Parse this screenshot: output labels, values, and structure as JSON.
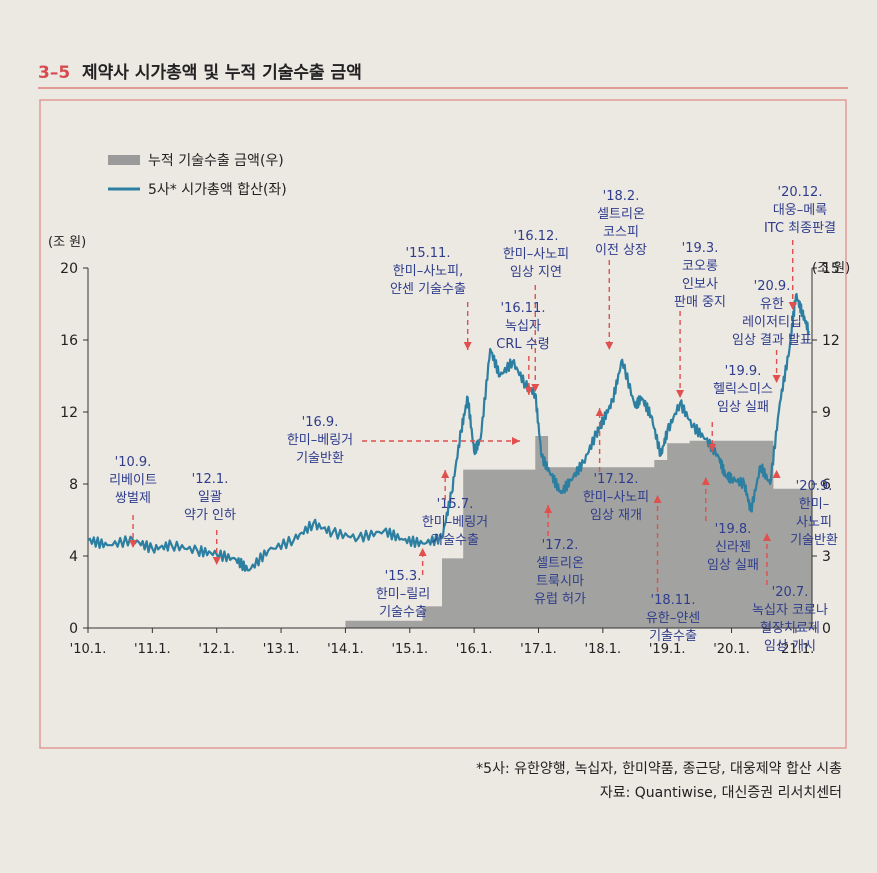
{
  "figure": {
    "number": "3–5",
    "title": "제약사 시가총액 및 누적 기술수출 금액",
    "footnote": "*5사: 유한양행, 녹십자, 한미약품, 종근당, 대웅제약 합산 시총",
    "source": "자료: Quantiwise, 대신증권 리서치센터"
  },
  "colors": {
    "number": "#d94a50",
    "frame": "#e29a96",
    "line": "#2c7fa0",
    "bar": "#9a9a9a",
    "annotation": "#2f3d8c",
    "arrow": "#e0504e",
    "text": "#222222"
  },
  "chart_data": {
    "type": "line+area",
    "legend": [
      {
        "label": "누적 기술수출 금액(우)",
        "series": "cumulative_exports"
      },
      {
        "label": "5사* 시가총액 합산(좌)",
        "series": "market_cap"
      }
    ],
    "y_left": {
      "unit_label": "(조 원)",
      "min": 0,
      "max": 20,
      "ticks": [
        0,
        4,
        8,
        12,
        16,
        20
      ]
    },
    "y_right": {
      "unit_label": "(조 원)",
      "min": 0,
      "max": 15,
      "ticks": [
        0,
        3,
        6,
        9,
        12,
        15
      ]
    },
    "x": {
      "min": 2010,
      "max": 2021.25,
      "ticks": [
        {
          "value": 2010,
          "label": "'10.1."
        },
        {
          "value": 2011,
          "label": "'11.1."
        },
        {
          "value": 2012,
          "label": "'12.1."
        },
        {
          "value": 2013,
          "label": "'13.1."
        },
        {
          "value": 2014,
          "label": "'14.1."
        },
        {
          "value": 2015,
          "label": "'15.1."
        },
        {
          "value": 2016,
          "label": "'16.1."
        },
        {
          "value": 2017,
          "label": "'17.1."
        },
        {
          "value": 2018,
          "label": "'18.1."
        },
        {
          "value": 2019,
          "label": "'19.1."
        },
        {
          "value": 2020,
          "label": "'20.1."
        },
        {
          "value": 2021,
          "label": "'21.1."
        }
      ]
    },
    "series": [
      {
        "id": "market_cap",
        "axis": "left",
        "points": [
          [
            2010.0,
            4.9
          ],
          [
            2010.3,
            4.6
          ],
          [
            2010.7,
            4.9
          ],
          [
            2011.0,
            4.4
          ],
          [
            2011.3,
            4.6
          ],
          [
            2011.7,
            4.3
          ],
          [
            2012.0,
            4.1
          ],
          [
            2012.3,
            3.8
          ],
          [
            2012.5,
            3.2
          ],
          [
            2012.8,
            4.3
          ],
          [
            2013.2,
            4.9
          ],
          [
            2013.5,
            5.8
          ],
          [
            2013.8,
            5.3
          ],
          [
            2014.2,
            5.0
          ],
          [
            2014.6,
            5.4
          ],
          [
            2014.9,
            4.9
          ],
          [
            2015.2,
            4.7
          ],
          [
            2015.5,
            5.0
          ],
          [
            2015.65,
            7.5
          ],
          [
            2015.8,
            11.0
          ],
          [
            2015.9,
            12.8
          ],
          [
            2016.0,
            9.8
          ],
          [
            2016.1,
            10.5
          ],
          [
            2016.25,
            15.5
          ],
          [
            2016.4,
            14.0
          ],
          [
            2016.6,
            14.8
          ],
          [
            2016.8,
            13.5
          ],
          [
            2016.95,
            13.0
          ],
          [
            2017.05,
            9.5
          ],
          [
            2017.2,
            8.5
          ],
          [
            2017.35,
            7.5
          ],
          [
            2017.5,
            8.2
          ],
          [
            2017.7,
            9.2
          ],
          [
            2017.9,
            10.8
          ],
          [
            2018.0,
            11.5
          ],
          [
            2018.15,
            12.6
          ],
          [
            2018.3,
            14.9
          ],
          [
            2018.5,
            12.3
          ],
          [
            2018.6,
            12.8
          ],
          [
            2018.75,
            11.8
          ],
          [
            2018.9,
            9.6
          ],
          [
            2019.0,
            10.9
          ],
          [
            2019.2,
            12.5
          ],
          [
            2019.4,
            11.2
          ],
          [
            2019.6,
            10.5
          ],
          [
            2019.8,
            9.5
          ],
          [
            2019.9,
            8.5
          ],
          [
            2020.0,
            8.3
          ],
          [
            2020.2,
            8.0
          ],
          [
            2020.3,
            6.5
          ],
          [
            2020.45,
            9.0
          ],
          [
            2020.6,
            8.0
          ],
          [
            2020.75,
            12.5
          ],
          [
            2020.9,
            15.5
          ],
          [
            2021.0,
            18.5
          ],
          [
            2021.1,
            17.5
          ],
          [
            2021.2,
            16.5
          ]
        ]
      },
      {
        "id": "cumulative_exports",
        "axis": "right",
        "points": [
          [
            2014.0,
            0
          ],
          [
            2014.0,
            0.3
          ],
          [
            2015.2,
            0.3
          ],
          [
            2015.2,
            0.9
          ],
          [
            2015.5,
            0.9
          ],
          [
            2015.5,
            2.9
          ],
          [
            2015.83,
            2.9
          ],
          [
            2015.83,
            6.6
          ],
          [
            2016.95,
            6.6
          ],
          [
            2016.95,
            8.0
          ],
          [
            2017.15,
            8.0
          ],
          [
            2017.15,
            6.7
          ],
          [
            2018.8,
            6.7
          ],
          [
            2018.8,
            7.0
          ],
          [
            2019.0,
            7.0
          ],
          [
            2019.0,
            7.7
          ],
          [
            2019.35,
            7.7
          ],
          [
            2019.35,
            7.8
          ],
          [
            2020.65,
            7.8
          ],
          [
            2020.65,
            5.8
          ],
          [
            2021.25,
            5.8
          ],
          [
            2021.25,
            0
          ]
        ]
      }
    ],
    "annotations": [
      {
        "lines": [
          "'10.9.",
          "리베이트",
          "쌍벌제"
        ],
        "date": 2010.7,
        "direction": "down"
      },
      {
        "lines": [
          "'12.1.",
          "일괄",
          "약가 인하"
        ],
        "date": 2012.0,
        "direction": "down"
      },
      {
        "lines": [
          "'15.3.",
          "한미–릴리",
          "기술수출"
        ],
        "date": 2015.2,
        "direction": "up"
      },
      {
        "lines": [
          "'15.11.",
          "한미–사노피,",
          "얀센 기술수출"
        ],
        "date": 2015.9,
        "direction": "down"
      },
      {
        "lines": [
          "'15.7.",
          "한미–베링거",
          "기술수출"
        ],
        "date": 2015.55,
        "direction": "up"
      },
      {
        "lines": [
          "'16.9.",
          "한미–베링거",
          "기술반환"
        ],
        "date": 2016.7,
        "direction": "right"
      },
      {
        "lines": [
          "'16.12.",
          "한미–사노피",
          "임상 지연"
        ],
        "date": 2016.95,
        "direction": "down"
      },
      {
        "lines": [
          "'16.11.",
          "녹십자",
          "CRL 수령"
        ],
        "date": 2016.85,
        "direction": "down"
      },
      {
        "lines": [
          "'17.2.",
          "셀트리온",
          "트룩시마",
          "유럽 허가"
        ],
        "date": 2017.15,
        "direction": "up"
      },
      {
        "lines": [
          "'18.2.",
          "셀트리온",
          "코스피",
          "이전 상장"
        ],
        "date": 2018.1,
        "direction": "down"
      },
      {
        "lines": [
          "'17.12.",
          "한미–사노피",
          "임상 재개"
        ],
        "date": 2017.95,
        "direction": "up"
      },
      {
        "lines": [
          "'19.3.",
          "코오롱",
          "인보사",
          "판매 중지"
        ],
        "date": 2019.2,
        "direction": "down"
      },
      {
        "lines": [
          "'18.11.",
          "유한–얀센",
          "기술수출"
        ],
        "date": 2018.85,
        "direction": "up"
      },
      {
        "lines": [
          "'20.12.",
          "대웅–메록",
          "ITC 최종판결"
        ],
        "date": 2020.95,
        "direction": "down"
      },
      {
        "lines": [
          "'20.9.",
          "유한",
          "레이저티닙",
          "임상 결과 발표"
        ],
        "date": 2020.7,
        "direction": "down"
      },
      {
        "lines": [
          "'19.9.",
          "헬릭스미스",
          "임상 실패"
        ],
        "date": 2019.7,
        "direction": "down"
      },
      {
        "lines": [
          "'19.8.",
          "신라젠",
          "임상 실패"
        ],
        "date": 2019.6,
        "direction": "up"
      },
      {
        "lines": [
          "'20.7.",
          "녹십자 코로나",
          "혈장치료제",
          "임상 개시"
        ],
        "date": 2020.55,
        "direction": "up"
      },
      {
        "lines": [
          "'20.9.",
          "한미–",
          "사노피",
          "기술반환"
        ],
        "date": 2020.7,
        "direction": "up"
      }
    ]
  }
}
